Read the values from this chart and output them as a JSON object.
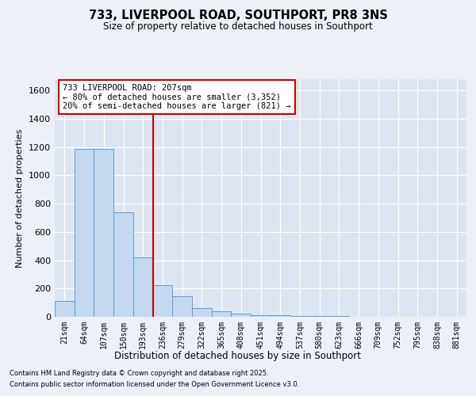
{
  "title": "733, LIVERPOOL ROAD, SOUTHPORT, PR8 3NS",
  "subtitle": "Size of property relative to detached houses in Southport",
  "xlabel": "Distribution of detached houses by size in Southport",
  "ylabel": "Number of detached properties",
  "categories": [
    "21sqm",
    "64sqm",
    "107sqm",
    "150sqm",
    "193sqm",
    "236sqm",
    "279sqm",
    "322sqm",
    "365sqm",
    "408sqm",
    "451sqm",
    "494sqm",
    "537sqm",
    "580sqm",
    "623sqm",
    "666sqm",
    "709sqm",
    "752sqm",
    "795sqm",
    "838sqm",
    "881sqm"
  ],
  "values": [
    110,
    1190,
    1190,
    740,
    420,
    225,
    145,
    60,
    38,
    22,
    14,
    9,
    6,
    4,
    3,
    2,
    1,
    1,
    1,
    1,
    0
  ],
  "bar_color": "#c5d8ed",
  "bar_edge_color": "#5a9fd4",
  "vline_color": "#cc0000",
  "vline_pos": 4.5,
  "annotation_text_line1": "733 LIVERPOOL ROAD: 207sqm",
  "annotation_text_line2": "← 80% of detached houses are smaller (3,352)",
  "annotation_text_line3": "20% of semi-detached houses are larger (821) →",
  "ylim": [
    0,
    1680
  ],
  "yticks": [
    0,
    200,
    400,
    600,
    800,
    1000,
    1200,
    1400,
    1600
  ],
  "footnote1": "Contains HM Land Registry data © Crown copyright and database right 2025.",
  "footnote2": "Contains public sector information licensed under the Open Government Licence v3.0.",
  "bg_color": "#edf1f7",
  "plot_bg_color": "#dde6f0"
}
